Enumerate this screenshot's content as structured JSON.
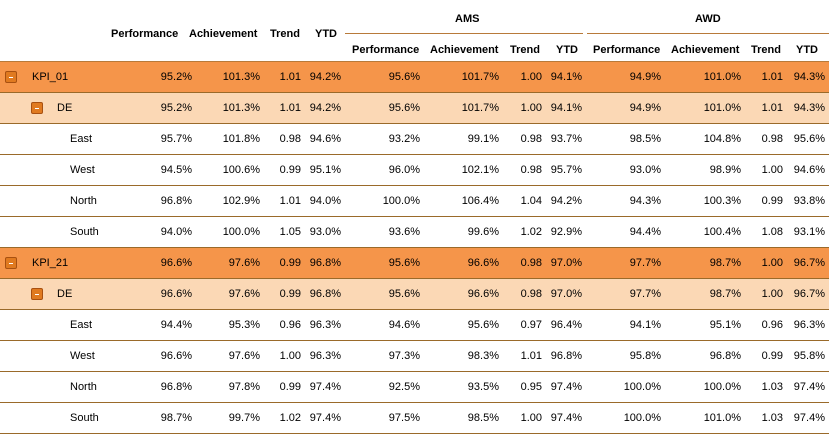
{
  "header": {
    "groups": [
      "AMS",
      "AWD"
    ],
    "main_cols": [
      "Performance",
      "Achievement",
      "Trend",
      "YTD"
    ],
    "sub_cols": [
      "Performance",
      "Achievement",
      "Trend",
      "YTD"
    ]
  },
  "rows": [
    {
      "level": 0,
      "label": "KPI_01",
      "vals": [
        "95.2%",
        "101.3%",
        "1.01",
        "94.2%",
        "95.6%",
        "101.7%",
        "1.00",
        "94.1%",
        "94.9%",
        "101.0%",
        "1.01",
        "94.3%"
      ]
    },
    {
      "level": 1,
      "label": "DE",
      "vals": [
        "95.2%",
        "101.3%",
        "1.01",
        "94.2%",
        "95.6%",
        "101.7%",
        "1.00",
        "94.1%",
        "94.9%",
        "101.0%",
        "1.01",
        "94.3%"
      ]
    },
    {
      "level": 2,
      "label": "East",
      "vals": [
        "95.7%",
        "101.8%",
        "0.98",
        "94.6%",
        "93.2%",
        "99.1%",
        "0.98",
        "93.7%",
        "98.5%",
        "104.8%",
        "0.98",
        "95.6%"
      ]
    },
    {
      "level": 2,
      "label": "West",
      "vals": [
        "94.5%",
        "100.6%",
        "0.99",
        "95.1%",
        "96.0%",
        "102.1%",
        "0.98",
        "95.7%",
        "93.0%",
        "98.9%",
        "1.00",
        "94.6%"
      ]
    },
    {
      "level": 2,
      "label": "North",
      "vals": [
        "96.8%",
        "102.9%",
        "1.01",
        "94.0%",
        "100.0%",
        "106.4%",
        "1.04",
        "94.2%",
        "94.3%",
        "100.3%",
        "0.99",
        "93.8%"
      ]
    },
    {
      "level": 2,
      "label": "South",
      "vals": [
        "94.0%",
        "100.0%",
        "1.05",
        "93.0%",
        "93.6%",
        "99.6%",
        "1.02",
        "92.9%",
        "94.4%",
        "100.4%",
        "1.08",
        "93.1%"
      ]
    },
    {
      "level": 0,
      "label": "KPI_21",
      "vals": [
        "96.6%",
        "97.6%",
        "0.99",
        "96.8%",
        "95.6%",
        "96.6%",
        "0.98",
        "97.0%",
        "97.7%",
        "98.7%",
        "1.00",
        "96.7%"
      ]
    },
    {
      "level": 1,
      "label": "DE",
      "vals": [
        "96.6%",
        "97.6%",
        "0.99",
        "96.8%",
        "95.6%",
        "96.6%",
        "0.98",
        "97.0%",
        "97.7%",
        "98.7%",
        "1.00",
        "96.7%"
      ]
    },
    {
      "level": 2,
      "label": "East",
      "vals": [
        "94.4%",
        "95.3%",
        "0.96",
        "96.3%",
        "94.6%",
        "95.6%",
        "0.97",
        "96.4%",
        "94.1%",
        "95.1%",
        "0.96",
        "96.3%"
      ]
    },
    {
      "level": 2,
      "label": "West",
      "vals": [
        "96.6%",
        "97.6%",
        "1.00",
        "96.3%",
        "97.3%",
        "98.3%",
        "1.01",
        "96.8%",
        "95.8%",
        "96.8%",
        "0.99",
        "95.8%"
      ]
    },
    {
      "level": 2,
      "label": "North",
      "vals": [
        "96.8%",
        "97.8%",
        "0.99",
        "97.4%",
        "92.5%",
        "93.5%",
        "0.95",
        "97.4%",
        "100.0%",
        "100.0%",
        "1.03",
        "97.4%"
      ]
    },
    {
      "level": 2,
      "label": "South",
      "vals": [
        "98.7%",
        "99.7%",
        "1.02",
        "97.4%",
        "97.5%",
        "98.5%",
        "1.00",
        "97.4%",
        "100.0%",
        "101.0%",
        "1.03",
        "97.4%"
      ]
    }
  ],
  "colors": {
    "kpi_row": "#f5954a",
    "sub_row": "#fbd8b5",
    "toggle": "#e07a20",
    "row_border": "#9a6a2a"
  }
}
